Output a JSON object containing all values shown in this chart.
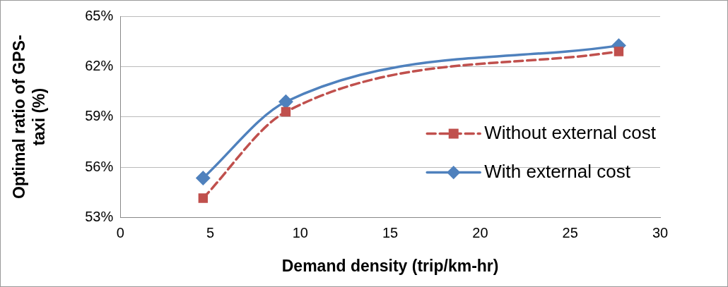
{
  "chart_data": {
    "type": "line",
    "xlabel": "Demand density (trip/km-hr)",
    "ylabel": "Optimal ratio of GPS-taxi (%)",
    "xlim": [
      0,
      30
    ],
    "xticks": [
      0,
      5,
      10,
      15,
      20,
      25,
      30
    ],
    "ylim": [
      53,
      65
    ],
    "yticks": [
      {
        "value": 53,
        "label": "53%"
      },
      {
        "value": 56,
        "label": "56%"
      },
      {
        "value": 59,
        "label": "59%"
      },
      {
        "value": 62,
        "label": "62%"
      },
      {
        "value": 65,
        "label": "65%"
      }
    ],
    "grid": "y",
    "legend": "right",
    "series": [
      {
        "name": "Without external cost",
        "color": "#c0504d",
        "x": [
          4.6,
          9.2,
          27.7
        ],
        "values": [
          54.15,
          59.3,
          62.9
        ],
        "marker": "square",
        "line_style": "dashed"
      },
      {
        "name": "With external cost",
        "color": "#4f81bd",
        "x": [
          4.6,
          9.2,
          27.7
        ],
        "values": [
          55.35,
          59.9,
          63.25
        ],
        "marker": "diamond",
        "line_style": "solid"
      }
    ]
  }
}
